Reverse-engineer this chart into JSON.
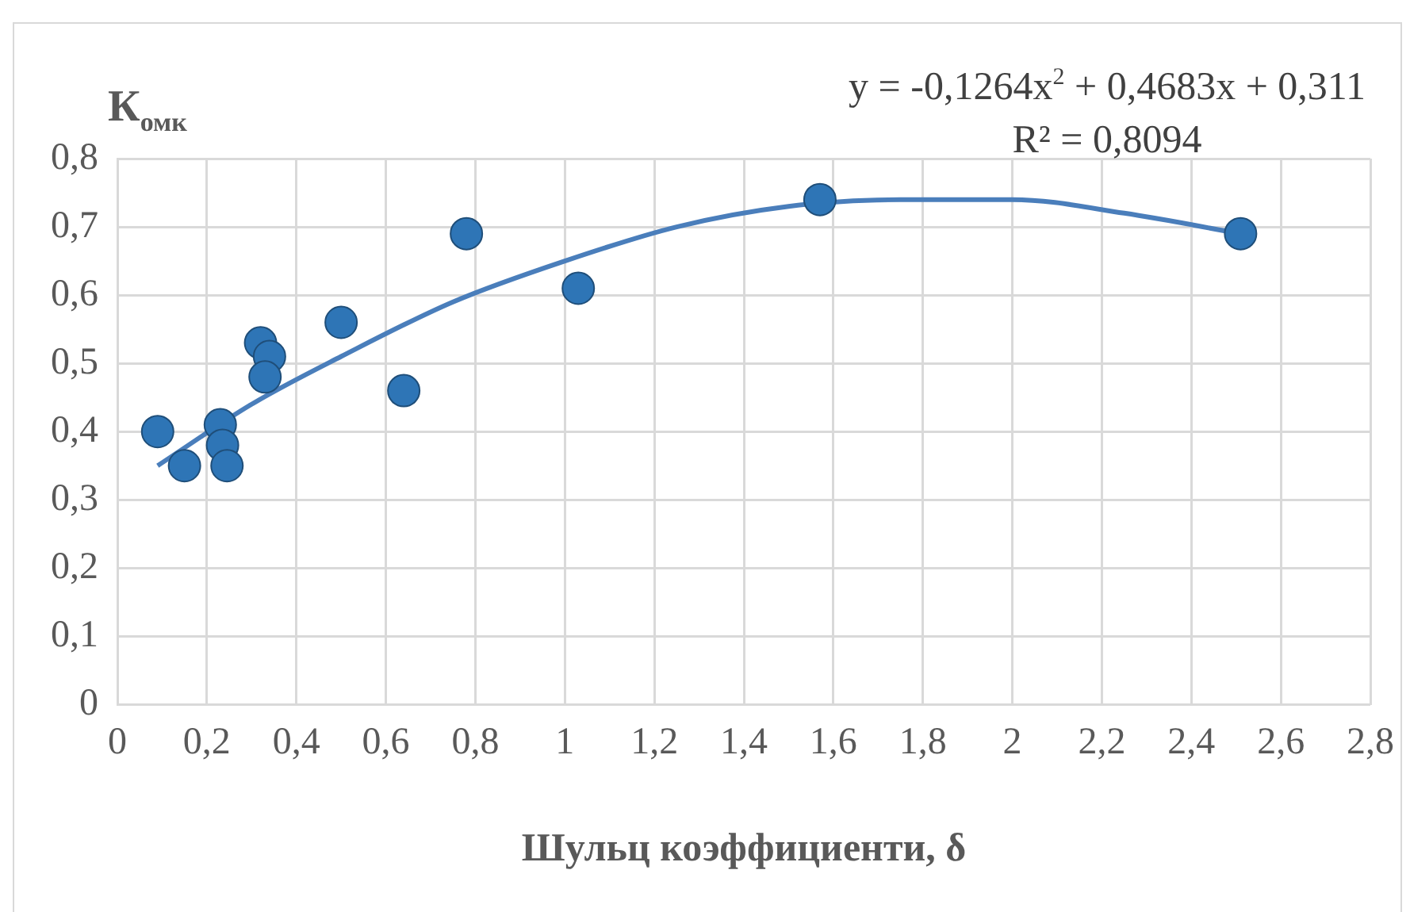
{
  "chart_data": {
    "type": "scatter",
    "ylabel": "К$_{омк}$",
    "xlabel": "Шульц коэффициенти, δ",
    "annotations": [
      "y = -0,1264x$^{2}$ + 0,4683x + 0,311",
      "R² = 0,8094"
    ],
    "series": [
      {
        "type": "scatter",
        "color": "#2e75b6",
        "marker": "circle",
        "x": [
          0.09,
          0.15,
          0.23,
          0.235,
          0.245,
          0.32,
          0.34,
          0.33,
          0.5,
          0.64,
          0.78,
          1.03,
          1.57,
          2.51
        ],
        "values": [
          0.4,
          0.35,
          0.41,
          0.38,
          0.35,
          0.53,
          0.51,
          0.48,
          0.56,
          0.46,
          0.69,
          0.61,
          0.74,
          0.69
        ]
      },
      {
        "type": "line",
        "color": "#4a7ebb",
        "marker": "none",
        "x": [
          0.09,
          0.3,
          0.5,
          0.75,
          1.0,
          1.25,
          1.5,
          1.75,
          2.0,
          2.25,
          2.51
        ],
        "values": [
          0.35,
          0.44,
          0.51,
          0.59,
          0.65,
          0.7,
          0.73,
          0.74,
          0.74,
          0.72,
          0.69
        ]
      }
    ],
    "xlim": [
      0,
      2.8
    ],
    "xticks": [
      0,
      {
        "value": 0.2,
        "label": "0,2"
      },
      {
        "value": 0.4,
        "label": "0,4"
      },
      {
        "value": 0.6,
        "label": "0,6"
      },
      {
        "value": 0.8,
        "label": "0,8"
      },
      1,
      {
        "value": 1.2,
        "label": "1,2"
      },
      {
        "value": 1.4,
        "label": "1,4"
      },
      {
        "value": 1.6,
        "label": "1,6"
      },
      {
        "value": 1.8,
        "label": "1,8"
      },
      2,
      {
        "value": 2.2,
        "label": "2,2"
      },
      {
        "value": 2.4,
        "label": "2,4"
      },
      {
        "value": 2.6,
        "label": "2,6"
      },
      {
        "value": 2.8,
        "label": "2,8"
      }
    ],
    "ylim": [
      0,
      0.8
    ],
    "yticks": [
      0,
      {
        "value": 0.1,
        "label": "0,1"
      },
      {
        "value": 0.2,
        "label": "0,2"
      },
      {
        "value": 0.3,
        "label": "0,3"
      },
      {
        "value": 0.4,
        "label": "0,4"
      },
      {
        "value": 0.5,
        "label": "0,5"
      },
      {
        "value": 0.6,
        "label": "0,6"
      },
      {
        "value": 0.7,
        "label": "0,7"
      },
      {
        "value": 0.8,
        "label": "0,8"
      }
    ],
    "grid": true,
    "legend": false
  }
}
